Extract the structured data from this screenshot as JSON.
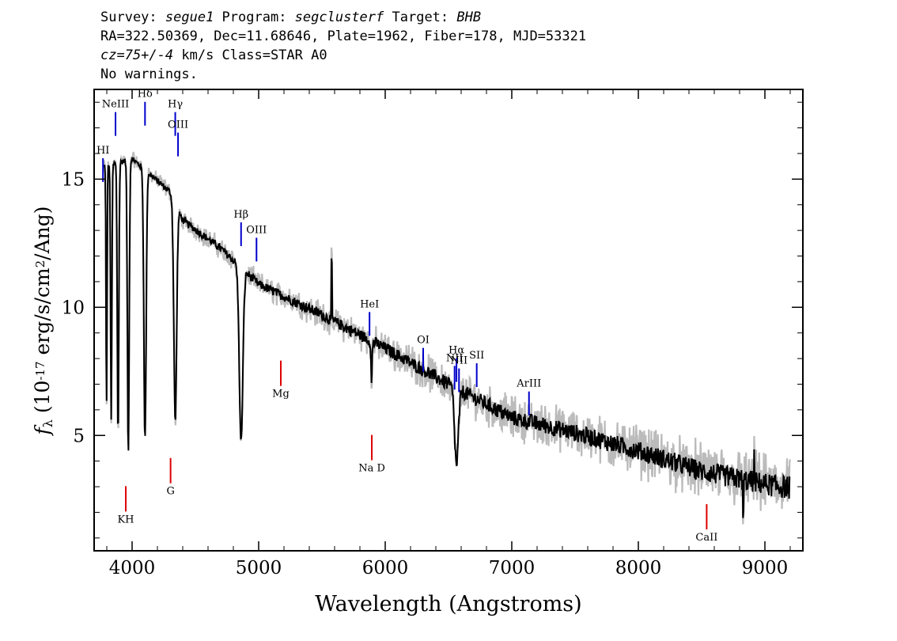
{
  "header": {
    "line1": {
      "survey_label": "Survey: ",
      "survey": "segue1",
      "program_label": " Program: ",
      "program": "segclusterf",
      "target_label": " Target: ",
      "target": "BHB"
    },
    "line2": "RA=322.50369, Dec=11.68646, Plate=1962, Fiber=178, MJD=53321",
    "line3": {
      "cz": "cz=75+/-4",
      "rest": " km/s Class=STAR A0"
    },
    "line4": "No warnings."
  },
  "chart_data": {
    "type": "line",
    "title": "",
    "xlabel": "Wavelength (Angstroms)",
    "ylabel": "f_λ (10^-17 erg/s/cm^2/Ang)",
    "xlim": [
      3700,
      9300
    ],
    "ylim": [
      0.5,
      18.5
    ],
    "xticks": [
      4000,
      5000,
      6000,
      7000,
      8000,
      9000
    ],
    "yticks": [
      5,
      10,
      15
    ],
    "grid": false,
    "colors": {
      "flux": "#000000",
      "error": "#bbbbbb",
      "emission": "#0000cc",
      "absorption": "#dd0000"
    },
    "continuum": [
      [
        3800,
        15.5
      ],
      [
        4000,
        15.8
      ],
      [
        4300,
        14.5
      ],
      [
        4400,
        13.4
      ],
      [
        4700,
        12.3
      ],
      [
        5000,
        10.9
      ],
      [
        5500,
        9.7
      ],
      [
        6000,
        8.4
      ],
      [
        6500,
        7.0
      ],
      [
        7000,
        5.7
      ],
      [
        7500,
        5.1
      ],
      [
        8000,
        4.4
      ],
      [
        8500,
        3.6
      ],
      [
        9000,
        3.1
      ],
      [
        9200,
        2.95
      ]
    ],
    "absorption_features": [
      {
        "x": 3798,
        "depth": 9.5,
        "width": 4
      },
      {
        "x": 3835,
        "depth": 10.0,
        "width": 5
      },
      {
        "x": 3889,
        "depth": 10.7,
        "width": 6
      },
      {
        "x": 3970,
        "depth": 11.5,
        "width": 7
      },
      {
        "x": 4102,
        "depth": 10.5,
        "width": 9
      },
      {
        "x": 4341,
        "depth": 8.5,
        "width": 11
      },
      {
        "x": 4861,
        "depth": 6.8,
        "width": 14
      },
      {
        "x": 5892,
        "depth": 1.8,
        "width": 4
      },
      {
        "x": 6563,
        "depth": 3.0,
        "width": 15
      }
    ],
    "spikes": [
      {
        "x": 5578,
        "dy": 2.2
      },
      {
        "x": 8915,
        "dy": 1.5
      },
      {
        "x": 8830,
        "dy": -1.5
      }
    ],
    "emission_lines": [
      {
        "label": "HI",
        "x": 3770,
        "label_y": 16.0
      },
      {
        "label": "NeIII",
        "x": 3869,
        "label_y": 17.8
      },
      {
        "label": "Hδ",
        "x": 4102,
        "label_y": 18.2
      },
      {
        "label": "Hγ",
        "x": 4341,
        "label_y": 17.8
      },
      {
        "label": "OIII",
        "x": 4363,
        "label_y": 17.0
      },
      {
        "label": "Hβ",
        "x": 4861,
        "label_y": 13.5
      },
      {
        "label": "OIII",
        "x": 4983,
        "label_y": 12.9
      },
      {
        "label": "HeI",
        "x": 5876,
        "label_y": 10.0
      },
      {
        "label": "OI",
        "x": 6300,
        "label_y": 8.6
      },
      {
        "label": "NII",
        "x": 6548,
        "label_y": 7.9
      },
      {
        "label": "Hα",
        "x": 6563,
        "label_y": 8.2
      },
      {
        "label": "NII",
        "x": 6583,
        "label_y": 7.8
      },
      {
        "label": "SII",
        "x": 6723,
        "label_y": 8.0
      },
      {
        "label": "ArIII",
        "x": 7136,
        "label_y": 6.9
      }
    ],
    "absorption_lines": [
      {
        "label": "KH",
        "x": 3950,
        "label_y": 1.6
      },
      {
        "label": "G",
        "x": 4304,
        "label_y": 2.7
      },
      {
        "label": "Mg",
        "x": 5175,
        "label_y": 6.5
      },
      {
        "label": "Na D",
        "x": 5894,
        "label_y": 3.6
      },
      {
        "label": "CaII",
        "x": 8540,
        "label_y": 0.9
      }
    ]
  }
}
